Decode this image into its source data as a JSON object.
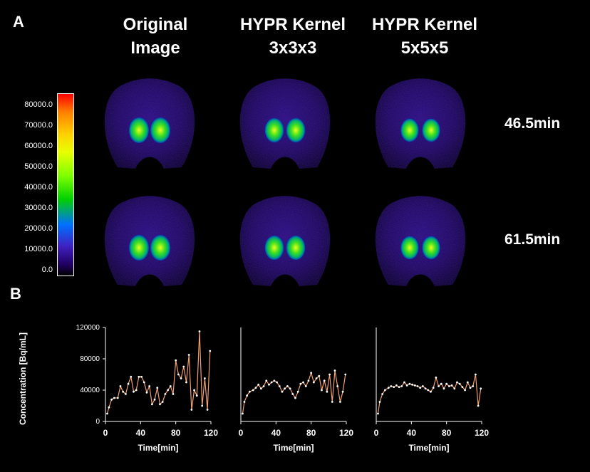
{
  "panel_a_label": "A",
  "panel_b_label": "B",
  "columns": [
    {
      "line1": "Original",
      "line2": "Image"
    },
    {
      "line1": "HYPR Kernel",
      "line2": "3x3x3"
    },
    {
      "line1": "HYPR Kernel",
      "line2": "5x5x5"
    }
  ],
  "rows": [
    "46.5min",
    "61.5min"
  ],
  "colorbar": {
    "ticks": [
      "80000.0",
      "70000.0",
      "60000.0",
      "50000.0",
      "40000.0",
      "30000.0",
      "20000.0",
      "10000.0",
      "0.0"
    ]
  },
  "colors": {
    "background": "#000000",
    "series": "#f0a070",
    "point": "#ffffff",
    "axis": "#ffffff"
  },
  "chart_data": [
    {
      "type": "line",
      "xlabel": "Time[min]",
      "ylabel": "Concentration [Bq/mL]",
      "xlim": [
        0,
        120
      ],
      "ylim": [
        0,
        120000
      ],
      "xticks": [
        "0",
        "40",
        "80",
        "120"
      ],
      "yticks": [
        "0",
        "40000",
        "80000",
        "120000"
      ],
      "x": [
        2,
        4,
        7,
        10,
        14,
        17,
        20,
        23,
        26,
        29,
        32,
        35,
        38,
        41,
        44,
        47,
        50,
        53,
        56,
        59,
        62,
        65,
        68,
        71,
        74,
        77,
        80,
        83,
        86,
        89,
        92,
        95,
        98,
        101,
        104,
        107,
        110,
        113,
        116,
        119
      ],
      "y": [
        10000,
        18000,
        28000,
        30000,
        30000,
        45000,
        38000,
        35000,
        48000,
        57000,
        38000,
        40000,
        57000,
        57000,
        50000,
        37000,
        45000,
        22000,
        28000,
        43000,
        22000,
        25000,
        35000,
        40000,
        45000,
        35000,
        78000,
        60000,
        55000,
        70000,
        50000,
        85000,
        15000,
        40000,
        33000,
        115000,
        20000,
        55000,
        15000,
        90000
      ]
    },
    {
      "type": "line",
      "xlabel": "Time[min]",
      "ylabel": "",
      "xlim": [
        0,
        120
      ],
      "ylim": [
        0,
        120000
      ],
      "xticks": [
        "0",
        "40",
        "80",
        "120"
      ],
      "yticks": [],
      "x": [
        2,
        4,
        7,
        10,
        14,
        17,
        20,
        23,
        26,
        29,
        32,
        35,
        38,
        41,
        44,
        47,
        50,
        53,
        56,
        59,
        62,
        65,
        68,
        71,
        74,
        77,
        80,
        83,
        86,
        89,
        92,
        95,
        98,
        101,
        104,
        107,
        110,
        113,
        116,
        119
      ],
      "y": [
        10000,
        25000,
        33000,
        38000,
        40000,
        43000,
        47000,
        42000,
        45000,
        52000,
        47000,
        50000,
        52000,
        50000,
        45000,
        38000,
        42000,
        45000,
        42000,
        35000,
        30000,
        38000,
        48000,
        50000,
        45000,
        52000,
        62000,
        50000,
        55000,
        58000,
        40000,
        52000,
        38000,
        60000,
        25000,
        65000,
        45000,
        25000,
        38000,
        60000
      ]
    },
    {
      "type": "line",
      "xlabel": "Time[min]",
      "ylabel": "",
      "xlim": [
        0,
        120
      ],
      "ylim": [
        0,
        120000
      ],
      "xticks": [
        "0",
        "40",
        "80",
        "120"
      ],
      "yticks": [],
      "x": [
        2,
        4,
        7,
        10,
        14,
        17,
        20,
        23,
        26,
        29,
        32,
        35,
        38,
        41,
        44,
        47,
        50,
        53,
        56,
        59,
        62,
        65,
        68,
        71,
        74,
        77,
        80,
        83,
        86,
        89,
        92,
        95,
        98,
        101,
        104,
        107,
        110,
        113,
        116,
        119
      ],
      "y": [
        10000,
        25000,
        35000,
        40000,
        43000,
        45000,
        44000,
        46000,
        44000,
        45000,
        50000,
        46000,
        48000,
        47000,
        46000,
        45000,
        43000,
        45000,
        42000,
        40000,
        38000,
        43000,
        56000,
        45000,
        48000,
        42000,
        48000,
        45000,
        46000,
        42000,
        50000,
        48000,
        44000,
        40000,
        50000,
        43000,
        45000,
        60000,
        20000,
        42000
      ]
    }
  ]
}
